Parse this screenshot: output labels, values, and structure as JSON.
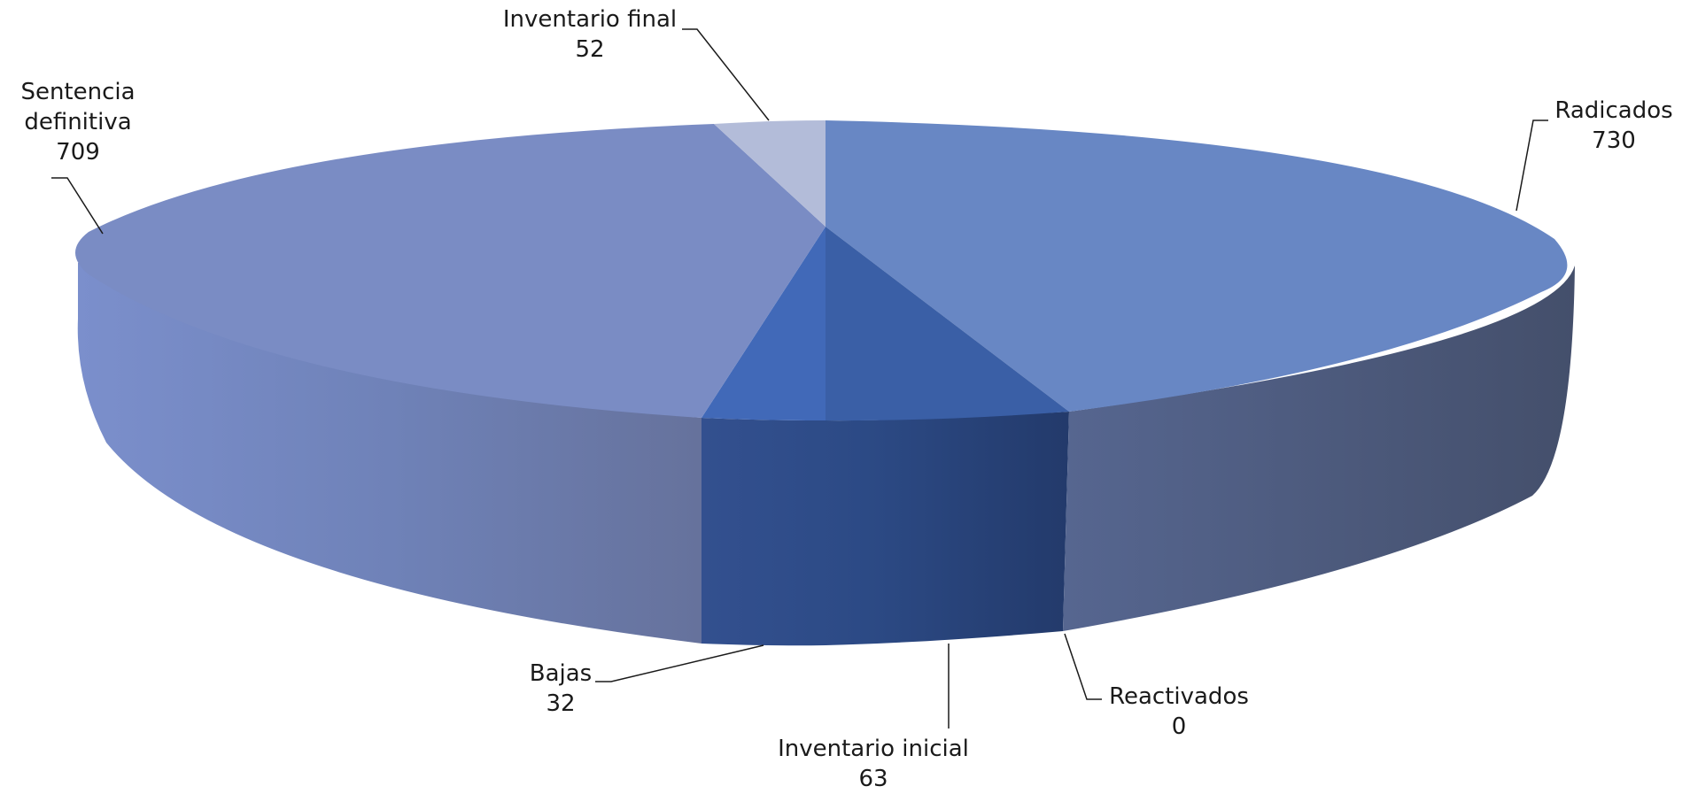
{
  "chart_data": {
    "type": "pie",
    "style": "3d",
    "slices": [
      {
        "name": "Inventario inicial",
        "value": 63,
        "color": "#3d5fa9"
      },
      {
        "name": "Radicados",
        "value": 730,
        "color": "#6887c4"
      },
      {
        "name": "Reactivados",
        "value": 0,
        "color": "#4a6db5"
      },
      {
        "name": "Inventario final",
        "value": 52,
        "color": "#b3bcd9"
      },
      {
        "name": "Sentencia definitiva",
        "value": 709,
        "color": "#7a8cc4"
      },
      {
        "name": "Bajas",
        "value": 32,
        "color": "#4169b8"
      }
    ],
    "labels": {
      "inventario_final": {
        "name": "Inventario final",
        "value": "52"
      },
      "sentencia_definitiva": {
        "name_line1": "Sentencia",
        "name_line2": "definitiva",
        "value": "709"
      },
      "radicados": {
        "name": "Radicados",
        "value": "730"
      },
      "reactivados": {
        "name": "Reactivados",
        "value": "0"
      },
      "inventario_inicial": {
        "name": "Inventario inicial",
        "value": "63"
      },
      "bajas": {
        "name": "Bajas",
        "value": "32"
      }
    }
  }
}
